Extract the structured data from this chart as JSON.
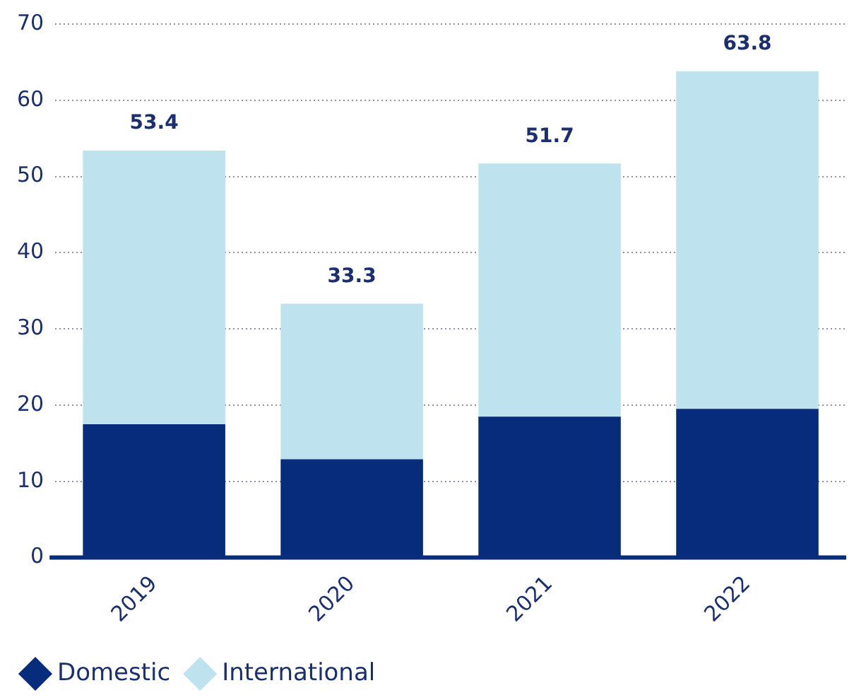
{
  "chart_data": {
    "type": "bar",
    "stacked": true,
    "categories": [
      "2019",
      "2020",
      "2021",
      "2022"
    ],
    "series": [
      {
        "name": "Domestic",
        "color": "#082c7c",
        "values": [
          17.5,
          12.9,
          18.5,
          19.5
        ]
      },
      {
        "name": "International",
        "color": "#bfe3ee",
        "values": [
          35.9,
          20.4,
          33.2,
          44.3
        ]
      }
    ],
    "totals": [
      "53.4",
      "33.3",
      "51.7",
      "63.8"
    ],
    "ylim": [
      0,
      70
    ],
    "yticks": [
      0,
      10,
      20,
      30,
      40,
      50,
      60,
      70
    ],
    "grid": "y",
    "legend": "bottom left",
    "marker": "diamond"
  }
}
